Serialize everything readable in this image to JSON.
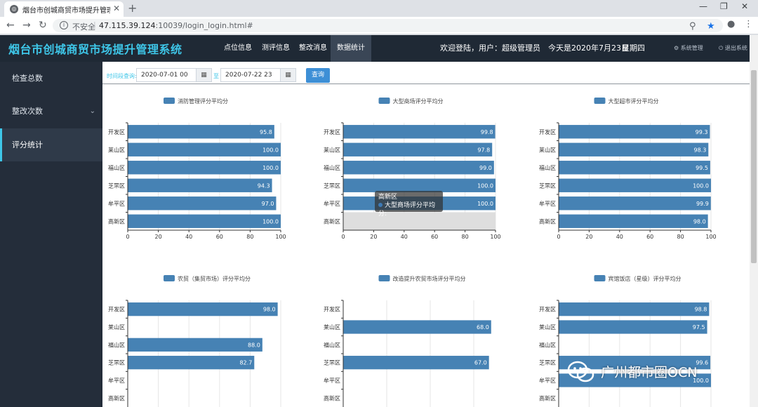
{
  "browser": {
    "tab_title": "烟台市创城商贸市场提升管理系统",
    "not_secure": "不安全",
    "url_host": "47.115.39.124",
    "url_rest": ":10039/login_login.html#"
  },
  "header": {
    "app_title": "烟台市创城商贸市场提升管理系统",
    "nav": [
      "点位信息",
      "测评信息",
      "整改消息",
      "数据统计"
    ],
    "active_nav": "数据统计",
    "welcome": "欢迎登陆，用户：超级管理员　今天是2020年7月23日",
    "weekday": "星期四",
    "system_manage": "系统管理",
    "logout": "退出系统"
  },
  "sidebar": {
    "items": [
      {
        "label": "检查总数"
      },
      {
        "label": "整改次数"
      },
      {
        "label": "评分统计"
      }
    ],
    "active": "评分统计"
  },
  "filter": {
    "label": "时间段查询:",
    "start": "2020-07-01 00",
    "to": "至",
    "end": "2020-07-22 23",
    "query": "查询"
  },
  "tooltip": {
    "title": "高新区",
    "series": "大型商场评分平均分:"
  },
  "watermark": {
    "text": "广州都市圈OCN"
  },
  "colors": {
    "bar": "#4682b4",
    "hover_band": "#dedede",
    "accent": "#3ec6e8",
    "header_bg": "#1f2935"
  },
  "chart_data": [
    {
      "type": "bar",
      "orientation": "horizontal",
      "title": "",
      "series": [
        {
          "name": "消防管理评分平均分",
          "values": [
            95.8,
            100.0,
            100.0,
            94.3,
            97.0,
            100.0
          ]
        }
      ],
      "categories": [
        "开发区",
        "莱山区",
        "福山区",
        "芝罘区",
        "牟平区",
        "高新区"
      ],
      "xlim": [
        0,
        100
      ],
      "xticks": [
        0,
        20,
        40,
        60,
        80,
        100
      ],
      "grid": true,
      "legend": "top-center"
    },
    {
      "type": "bar",
      "orientation": "horizontal",
      "title": "",
      "series": [
        {
          "name": "大型商场评分平均分",
          "values": [
            99.8,
            97.8,
            99.0,
            100.0,
            100.0,
            null
          ]
        }
      ],
      "categories": [
        "开发区",
        "莱山区",
        "福山区",
        "芝罘区",
        "牟平区",
        "高新区"
      ],
      "xlim": [
        0,
        100
      ],
      "xticks": [
        0,
        20,
        40,
        60,
        80,
        100
      ],
      "grid": true,
      "legend": "top-center",
      "highlight": "高新区"
    },
    {
      "type": "bar",
      "orientation": "horizontal",
      "title": "",
      "series": [
        {
          "name": "大型超市评分平均分",
          "values": [
            99.3,
            98.3,
            99.5,
            100.0,
            99.9,
            98.0
          ]
        }
      ],
      "categories": [
        "开发区",
        "莱山区",
        "福山区",
        "芝罘区",
        "牟平区",
        "高新区"
      ],
      "xlim": [
        0,
        100
      ],
      "xticks": [
        0,
        20,
        40,
        60,
        80,
        100
      ],
      "grid": true,
      "legend": "top-center"
    },
    {
      "type": "bar",
      "orientation": "horizontal",
      "title": "",
      "series": [
        {
          "name": "农贸（集贸市场）评分平均分",
          "values": [
            98.0,
            null,
            88.0,
            82.7,
            null,
            null
          ]
        }
      ],
      "categories": [
        "开发区",
        "莱山区",
        "福山区",
        "芝罘区",
        "牟平区",
        "高新区"
      ],
      "xlim": [
        0,
        100
      ],
      "grid": true,
      "legend": "top-center"
    },
    {
      "type": "bar",
      "orientation": "horizontal",
      "title": "",
      "series": [
        {
          "name": "改造提升农贸市场评分平均分",
          "values": [
            null,
            68.0,
            null,
            67.0,
            null,
            null
          ]
        }
      ],
      "categories": [
        "开发区",
        "莱山区",
        "福山区",
        "芝罘区",
        "牟平区",
        "高新区"
      ],
      "xlim": [
        0,
        70
      ],
      "grid": true,
      "legend": "top-center"
    },
    {
      "type": "bar",
      "orientation": "horizontal",
      "title": "",
      "series": [
        {
          "name": "宾馆饭店（星级）评分平均分",
          "values": [
            98.8,
            97.5,
            null,
            99.6,
            100.0,
            null
          ]
        }
      ],
      "categories": [
        "开发区",
        "莱山区",
        "福山区",
        "芝罘区",
        "牟平区",
        "高新区"
      ],
      "xlim": [
        0,
        100
      ],
      "grid": true,
      "legend": "top-center"
    }
  ]
}
